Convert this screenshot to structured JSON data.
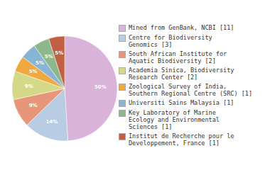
{
  "chart_data": {
    "type": "pie",
    "categories": [
      "Mined from GenBank, NCBI [11]",
      "Centre for Biodiversity\nGenomics [3]",
      "South African Institute for\nAquatic Biodiversity [2]",
      "Academia Sinica, Biodiversity\nResearch Center [2]",
      "Zoological Survey of India,\nSouthern Regional Centre (SRC) [1]",
      "Universiti Sains Malaysia [1]",
      "Key Laboratory of Marine\nEcology and Environmental\nSciences [1]",
      "Institut de Recherche pour le\nDeveloppement, France [1]"
    ],
    "values": [
      50,
      14,
      9,
      9,
      5,
      5,
      5,
      5
    ],
    "value_labels": [
      "50%",
      "14%",
      "9%",
      "9%",
      "5%",
      "5%",
      "5%",
      "5%"
    ],
    "colors": [
      "#d9b3d9",
      "#b8cce4",
      "#e8967a",
      "#d4d98a",
      "#f0a840",
      "#89b4d4",
      "#8db88d",
      "#c06040"
    ],
    "data_labels": true,
    "legend": "right"
  }
}
